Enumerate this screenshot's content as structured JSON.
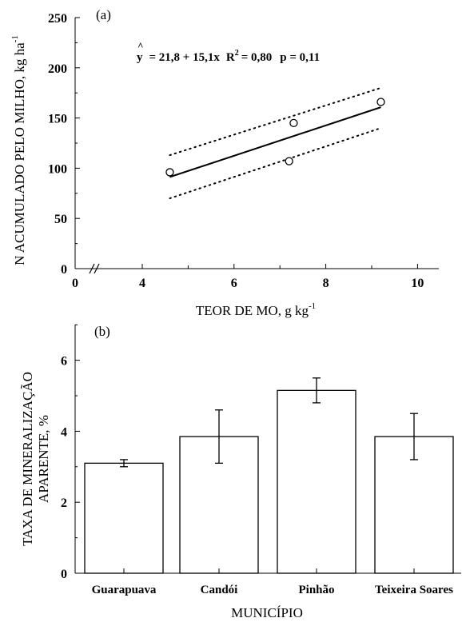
{
  "chart_data": [
    {
      "panel_label": "(a)",
      "type": "scatter",
      "xlabel": "TEOR DE MO, g kg",
      "xlabel_sup": "-1",
      "ylabel": "N ACUMULADO PELO MILHO, kg ha",
      "ylabel_sup": "-1",
      "xlim": [
        0,
        11
      ],
      "ylim": [
        0,
        250
      ],
      "xticks": [
        0,
        4,
        6,
        8,
        10
      ],
      "yticks": [
        0,
        50,
        100,
        150,
        200,
        250
      ],
      "axis_break": true,
      "points": [
        {
          "x": 4.6,
          "y": 96
        },
        {
          "x": 7.2,
          "y": 107
        },
        {
          "x": 7.3,
          "y": 145
        },
        {
          "x": 9.2,
          "y": 166
        }
      ],
      "regression": {
        "intercept": 21.8,
        "slope": 15.1,
        "x_range": [
          4.6,
          9.2
        ]
      },
      "confidence_band": {
        "upper": [
          [
            4.6,
            113
          ],
          [
            9.2,
            180
          ]
        ],
        "lower": [
          [
            4.6,
            70
          ],
          [
            9.2,
            140
          ]
        ]
      },
      "equation": {
        "hat_symbol": "^",
        "lhs": "y",
        "rhs": "= 21,8 + 15,1x",
        "r2_label": "R",
        "r2_sup": "2",
        "r2_value": "= 0,80",
        "p_text": "p = 0,11"
      }
    },
    {
      "panel_label": "(b)",
      "type": "bar",
      "xlabel": "MUNICÍPIO",
      "ylabel_line1": "TAXA DE MINERALIZAÇÃO",
      "ylabel_line2": "APARENTE, %",
      "ylim": [
        0,
        7
      ],
      "yticks": [
        0,
        2,
        4,
        6
      ],
      "categories": [
        "Guarapuava",
        "Candói",
        "Pinhão",
        "Teixeira Soares"
      ],
      "values": [
        3.1,
        3.85,
        5.15,
        3.85
      ],
      "errors": [
        0.1,
        0.75,
        0.35,
        0.65
      ]
    }
  ]
}
